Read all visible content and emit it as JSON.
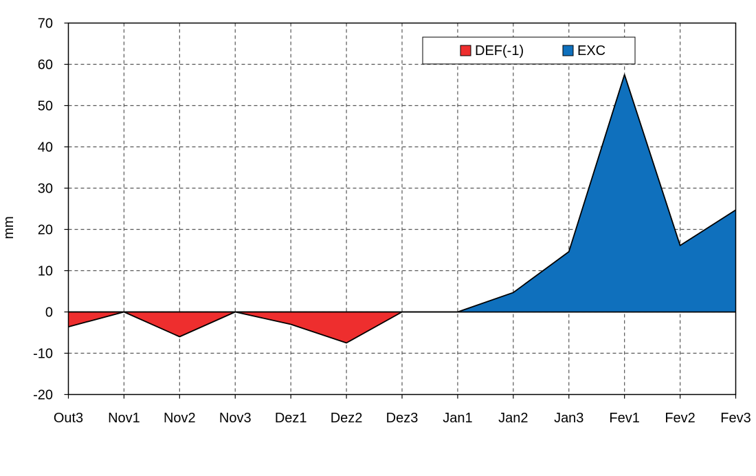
{
  "chart_data": {
    "type": "area",
    "title": "",
    "xlabel": "",
    "ylabel": "mm",
    "ylim": [
      -20,
      70
    ],
    "ytick_step": 10,
    "yticks": [
      "-20",
      "-10",
      "0",
      "10",
      "20",
      "30",
      "40",
      "50",
      "60",
      "70"
    ],
    "grid": true,
    "legend_position": "top-right",
    "categories": [
      "Out3",
      "Nov1",
      "Nov2",
      "Nov3",
      "Dez1",
      "Dez2",
      "Dez3",
      "Jan1",
      "Jan2",
      "Jan3",
      "Fev1",
      "Fev2",
      "Fev3"
    ],
    "series": [
      {
        "name": "DEF(-1)",
        "color": "#ee2e2e",
        "values": [
          -3.6,
          0,
          -6.0,
          0,
          -3.0,
          -7.5,
          0,
          0,
          0,
          0,
          0,
          0,
          0
        ]
      },
      {
        "name": "EXC",
        "color": "#0f70bd",
        "values": [
          0,
          0,
          0,
          0,
          0,
          0,
          0,
          0,
          4.7,
          14.6,
          57.5,
          16.1,
          24.7
        ]
      }
    ]
  }
}
